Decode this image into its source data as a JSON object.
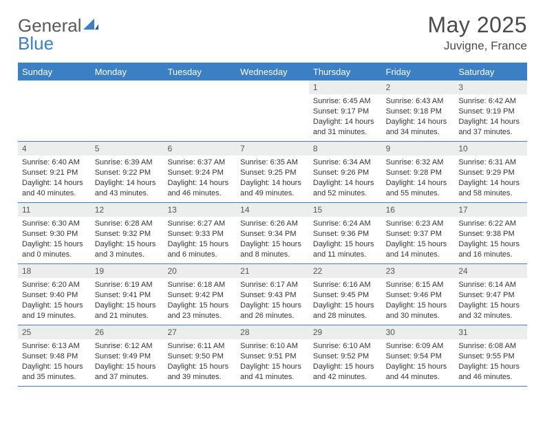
{
  "logo": {
    "text1": "General",
    "text2": "Blue"
  },
  "title": "May 2025",
  "location": "Juvigne, France",
  "colors": {
    "accent": "#3b7fc4",
    "header_text": "#ffffff",
    "daynum_bg": "#eceded",
    "text": "#333333",
    "title_text": "#4a4a4a"
  },
  "day_names": [
    "Sunday",
    "Monday",
    "Tuesday",
    "Wednesday",
    "Thursday",
    "Friday",
    "Saturday"
  ],
  "weeks": [
    [
      {
        "n": "",
        "sr": "",
        "ss": "",
        "dl": ""
      },
      {
        "n": "",
        "sr": "",
        "ss": "",
        "dl": ""
      },
      {
        "n": "",
        "sr": "",
        "ss": "",
        "dl": ""
      },
      {
        "n": "",
        "sr": "",
        "ss": "",
        "dl": ""
      },
      {
        "n": "1",
        "sr": "Sunrise: 6:45 AM",
        "ss": "Sunset: 9:17 PM",
        "dl": "Daylight: 14 hours and 31 minutes."
      },
      {
        "n": "2",
        "sr": "Sunrise: 6:43 AM",
        "ss": "Sunset: 9:18 PM",
        "dl": "Daylight: 14 hours and 34 minutes."
      },
      {
        "n": "3",
        "sr": "Sunrise: 6:42 AM",
        "ss": "Sunset: 9:19 PM",
        "dl": "Daylight: 14 hours and 37 minutes."
      }
    ],
    [
      {
        "n": "4",
        "sr": "Sunrise: 6:40 AM",
        "ss": "Sunset: 9:21 PM",
        "dl": "Daylight: 14 hours and 40 minutes."
      },
      {
        "n": "5",
        "sr": "Sunrise: 6:39 AM",
        "ss": "Sunset: 9:22 PM",
        "dl": "Daylight: 14 hours and 43 minutes."
      },
      {
        "n": "6",
        "sr": "Sunrise: 6:37 AM",
        "ss": "Sunset: 9:24 PM",
        "dl": "Daylight: 14 hours and 46 minutes."
      },
      {
        "n": "7",
        "sr": "Sunrise: 6:35 AM",
        "ss": "Sunset: 9:25 PM",
        "dl": "Daylight: 14 hours and 49 minutes."
      },
      {
        "n": "8",
        "sr": "Sunrise: 6:34 AM",
        "ss": "Sunset: 9:26 PM",
        "dl": "Daylight: 14 hours and 52 minutes."
      },
      {
        "n": "9",
        "sr": "Sunrise: 6:32 AM",
        "ss": "Sunset: 9:28 PM",
        "dl": "Daylight: 14 hours and 55 minutes."
      },
      {
        "n": "10",
        "sr": "Sunrise: 6:31 AM",
        "ss": "Sunset: 9:29 PM",
        "dl": "Daylight: 14 hours and 58 minutes."
      }
    ],
    [
      {
        "n": "11",
        "sr": "Sunrise: 6:30 AM",
        "ss": "Sunset: 9:30 PM",
        "dl": "Daylight: 15 hours and 0 minutes."
      },
      {
        "n": "12",
        "sr": "Sunrise: 6:28 AM",
        "ss": "Sunset: 9:32 PM",
        "dl": "Daylight: 15 hours and 3 minutes."
      },
      {
        "n": "13",
        "sr": "Sunrise: 6:27 AM",
        "ss": "Sunset: 9:33 PM",
        "dl": "Daylight: 15 hours and 6 minutes."
      },
      {
        "n": "14",
        "sr": "Sunrise: 6:26 AM",
        "ss": "Sunset: 9:34 PM",
        "dl": "Daylight: 15 hours and 8 minutes."
      },
      {
        "n": "15",
        "sr": "Sunrise: 6:24 AM",
        "ss": "Sunset: 9:36 PM",
        "dl": "Daylight: 15 hours and 11 minutes."
      },
      {
        "n": "16",
        "sr": "Sunrise: 6:23 AM",
        "ss": "Sunset: 9:37 PM",
        "dl": "Daylight: 15 hours and 14 minutes."
      },
      {
        "n": "17",
        "sr": "Sunrise: 6:22 AM",
        "ss": "Sunset: 9:38 PM",
        "dl": "Daylight: 15 hours and 16 minutes."
      }
    ],
    [
      {
        "n": "18",
        "sr": "Sunrise: 6:20 AM",
        "ss": "Sunset: 9:40 PM",
        "dl": "Daylight: 15 hours and 19 minutes."
      },
      {
        "n": "19",
        "sr": "Sunrise: 6:19 AM",
        "ss": "Sunset: 9:41 PM",
        "dl": "Daylight: 15 hours and 21 minutes."
      },
      {
        "n": "20",
        "sr": "Sunrise: 6:18 AM",
        "ss": "Sunset: 9:42 PM",
        "dl": "Daylight: 15 hours and 23 minutes."
      },
      {
        "n": "21",
        "sr": "Sunrise: 6:17 AM",
        "ss": "Sunset: 9:43 PM",
        "dl": "Daylight: 15 hours and 26 minutes."
      },
      {
        "n": "22",
        "sr": "Sunrise: 6:16 AM",
        "ss": "Sunset: 9:45 PM",
        "dl": "Daylight: 15 hours and 28 minutes."
      },
      {
        "n": "23",
        "sr": "Sunrise: 6:15 AM",
        "ss": "Sunset: 9:46 PM",
        "dl": "Daylight: 15 hours and 30 minutes."
      },
      {
        "n": "24",
        "sr": "Sunrise: 6:14 AM",
        "ss": "Sunset: 9:47 PM",
        "dl": "Daylight: 15 hours and 32 minutes."
      }
    ],
    [
      {
        "n": "25",
        "sr": "Sunrise: 6:13 AM",
        "ss": "Sunset: 9:48 PM",
        "dl": "Daylight: 15 hours and 35 minutes."
      },
      {
        "n": "26",
        "sr": "Sunrise: 6:12 AM",
        "ss": "Sunset: 9:49 PM",
        "dl": "Daylight: 15 hours and 37 minutes."
      },
      {
        "n": "27",
        "sr": "Sunrise: 6:11 AM",
        "ss": "Sunset: 9:50 PM",
        "dl": "Daylight: 15 hours and 39 minutes."
      },
      {
        "n": "28",
        "sr": "Sunrise: 6:10 AM",
        "ss": "Sunset: 9:51 PM",
        "dl": "Daylight: 15 hours and 41 minutes."
      },
      {
        "n": "29",
        "sr": "Sunrise: 6:10 AM",
        "ss": "Sunset: 9:52 PM",
        "dl": "Daylight: 15 hours and 42 minutes."
      },
      {
        "n": "30",
        "sr": "Sunrise: 6:09 AM",
        "ss": "Sunset: 9:54 PM",
        "dl": "Daylight: 15 hours and 44 minutes."
      },
      {
        "n": "31",
        "sr": "Sunrise: 6:08 AM",
        "ss": "Sunset: 9:55 PM",
        "dl": "Daylight: 15 hours and 46 minutes."
      }
    ]
  ]
}
